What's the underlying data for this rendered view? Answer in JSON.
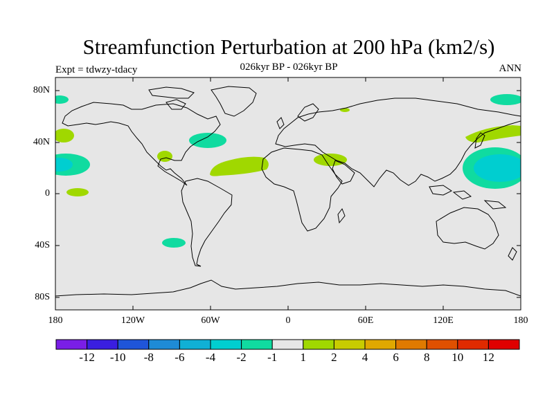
{
  "title": "Streamfunction Perturbation at 200 hPa (km2/s)",
  "subtitle": "026kyr BP - 026kyr BP",
  "left_label": "Expt = tdwzy-tdacy",
  "right_label": "ANN",
  "lat_ticks": [
    "80N",
    "40N",
    "0",
    "40S",
    "80S"
  ],
  "lon_ticks": [
    "180",
    "120W",
    "60W",
    "0",
    "60E",
    "120E",
    "180"
  ],
  "colorbar": {
    "labels": [
      "-12",
      "-10",
      "-8",
      "-6",
      "-4",
      "-2",
      "-1",
      "1",
      "2",
      "4",
      "6",
      "8",
      "10",
      "12"
    ],
    "colors": [
      "#7a1ee6",
      "#3a1ee0",
      "#1f55d9",
      "#1e8bd6",
      "#10b0d5",
      "#00ced0",
      "#10dba0",
      "#e6e6e6",
      "#a0d800",
      "#c8cc00",
      "#e0a800",
      "#e07a00",
      "#e05000",
      "#e02a00",
      "#e00000"
    ]
  },
  "colors": {
    "background": "#e6e6e6",
    "positive_2": "#a0d800",
    "negative_1": "#10dba0",
    "negative_2": "#00ced0"
  }
}
